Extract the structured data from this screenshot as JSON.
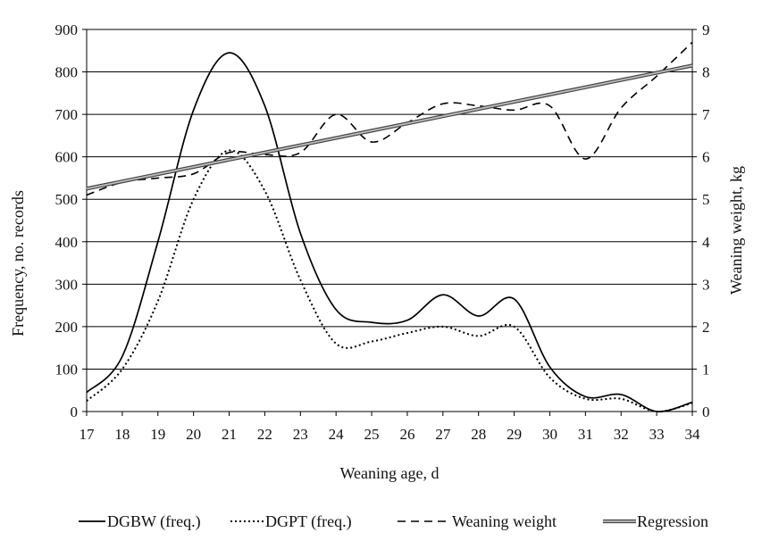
{
  "chart_data": {
    "type": "line",
    "xlabel": "Weaning age, d",
    "ylabel_left": "Frequency, no. records",
    "ylabel_right": "Weaning weight, kg",
    "x": [
      17,
      18,
      19,
      20,
      21,
      22,
      23,
      24,
      25,
      26,
      27,
      28,
      29,
      30,
      31,
      32,
      33,
      34
    ],
    "xlim": [
      17,
      34
    ],
    "ylim_left": [
      0,
      900
    ],
    "yticks_left": [
      0,
      100,
      200,
      300,
      400,
      500,
      600,
      700,
      800,
      900
    ],
    "ylim_right": [
      0,
      9
    ],
    "yticks_right": [
      0,
      1,
      2,
      3,
      4,
      5,
      6,
      7,
      8,
      9
    ],
    "grid": "horizontal",
    "legend_position": "bottom",
    "series": [
      {
        "name": "DGBW (freq.)",
        "axis": "left",
        "style": "solid",
        "color": "#000000",
        "x": [
          17,
          18,
          19,
          20,
          21,
          22,
          23,
          24,
          25,
          26,
          27,
          28,
          29,
          30,
          31,
          32,
          33,
          34
        ],
        "values": [
          45,
          130,
          400,
          710,
          845,
          720,
          420,
          240,
          210,
          215,
          275,
          225,
          265,
          105,
          35,
          40,
          0,
          22
        ]
      },
      {
        "name": "DGPT (freq.)",
        "axis": "left",
        "style": "dotted",
        "color": "#000000",
        "x": [
          17,
          18,
          19,
          20,
          21,
          22,
          23,
          24,
          25,
          26,
          27,
          28,
          29,
          30,
          31,
          32,
          33,
          34
        ],
        "values": [
          25,
          100,
          260,
          500,
          615,
          520,
          310,
          160,
          165,
          185,
          200,
          178,
          200,
          80,
          30,
          30,
          0,
          20
        ]
      },
      {
        "name": "Weaning weight",
        "axis": "right",
        "style": "dashed",
        "color": "#000000",
        "x": [
          17,
          18,
          19,
          20,
          21,
          22,
          23,
          24,
          25,
          26,
          27,
          28,
          29,
          30,
          31,
          32,
          33,
          34
        ],
        "values": [
          5.1,
          5.4,
          5.5,
          5.6,
          6.1,
          6.05,
          6.1,
          7.0,
          6.35,
          6.8,
          7.25,
          7.2,
          7.1,
          7.2,
          5.95,
          7.15,
          7.9,
          8.7
        ]
      },
      {
        "name": "Regression",
        "axis": "right",
        "style": "double",
        "color": "#888888",
        "x": [
          17,
          34
        ],
        "values": [
          5.25,
          8.15
        ]
      }
    ]
  }
}
